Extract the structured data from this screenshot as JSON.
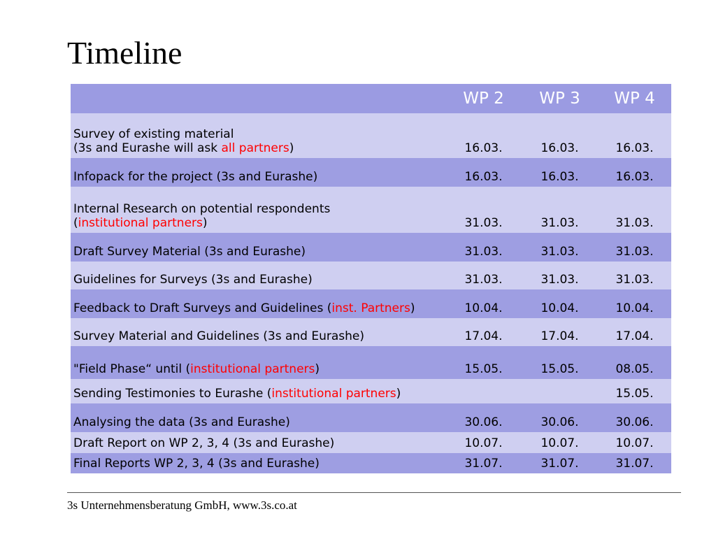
{
  "title": "Timeline",
  "table": {
    "headers": [
      "",
      "WP 2",
      "WP 3",
      "WP 4"
    ],
    "rows": [
      {
        "task_parts": [
          {
            "text": "Survey of existing material",
            "br": true
          },
          {
            "text": "(3s and Eurashe will ask "
          },
          {
            "text": "all partners",
            "hl": true
          },
          {
            "text": ")"
          }
        ],
        "dates": [
          "16.03.",
          "16.03.",
          "16.03."
        ],
        "shade": "light",
        "height": 64
      },
      {
        "task_parts": [
          {
            "text": "Infopack for the project (3s and Eurashe)"
          }
        ],
        "dates": [
          "16.03.",
          "16.03.",
          "16.03."
        ],
        "shade": "dark",
        "height": 41
      },
      {
        "task_parts": [
          {
            "text": "Internal Research on potential respondents",
            "br": true
          },
          {
            "text": "("
          },
          {
            "text": "institutional partners",
            "hl": true
          },
          {
            "text": ")"
          }
        ],
        "dates": [
          "31.03.",
          "31.03.",
          "31.03."
        ],
        "shade": "light",
        "height": 66
      },
      {
        "task_parts": [
          {
            "text": "Draft Survey Material (3s and Eurashe)"
          }
        ],
        "dates": [
          "31.03.",
          "31.03.",
          "31.03."
        ],
        "shade": "dark",
        "height": 41
      },
      {
        "task_parts": [
          {
            "text": "Guidelines for Surveys (3s and Eurashe)"
          }
        ],
        "dates": [
          "31.03.",
          "31.03.",
          "31.03."
        ],
        "shade": "light",
        "height": 40
      },
      {
        "task_parts": [
          {
            "text": "Feedback to Draft Surveys and Guidelines ("
          },
          {
            "text": "inst. Partners",
            "hl": true
          },
          {
            "text": ")"
          }
        ],
        "dates": [
          "10.04.",
          "10.04.",
          "10.04."
        ],
        "shade": "dark",
        "height": 41
      },
      {
        "task_parts": [
          {
            "text": "Survey Material and Guidelines (3s and Eurashe)"
          }
        ],
        "dates": [
          "17.04.",
          "17.04.",
          "17.04."
        ],
        "shade": "light",
        "height": 40
      },
      {
        "task_parts": [
          {
            "text": "\"Field Phase“ until ("
          },
          {
            "text": "institutional partners",
            "hl": true
          },
          {
            "text": ")"
          }
        ],
        "dates": [
          "15.05.",
          "15.05.",
          "08.05."
        ],
        "shade": "dark",
        "height": 47
      },
      {
        "task_parts": [
          {
            "text": "Sending Testimonies to Eurashe ("
          },
          {
            "text": "institutional partners",
            "hl": true
          },
          {
            "text": ")"
          }
        ],
        "dates": [
          "",
          "",
          "15.05."
        ],
        "shade": "light",
        "height": 35
      },
      {
        "task_parts": [
          {
            "text": "Analysing the data (3s and Eurashe)"
          }
        ],
        "dates": [
          "30.06.",
          "30.06.",
          "30.06."
        ],
        "shade": "dark",
        "height": 41
      },
      {
        "task_parts": [
          {
            "text": "Draft Report on WP 2, 3, 4 (3s and Eurashe)"
          }
        ],
        "dates": [
          "10.07.",
          "10.07.",
          "10.07."
        ],
        "shade": "light",
        "height": 30
      },
      {
        "task_parts": [
          {
            "text": "Final Reports WP 2, 3, 4 (3s and Eurashe)"
          }
        ],
        "dates": [
          "31.07.",
          "31.07.",
          "31.07."
        ],
        "shade": "dark",
        "height": 29
      }
    ]
  },
  "footer": "3s Unternehmensberatung GmbH, www.3s.co.at",
  "colors": {
    "header_bg": "#9b9be2",
    "row_light": "#cfcff1",
    "row_dark": "#9e9ee2",
    "highlight": "#ff0000"
  }
}
